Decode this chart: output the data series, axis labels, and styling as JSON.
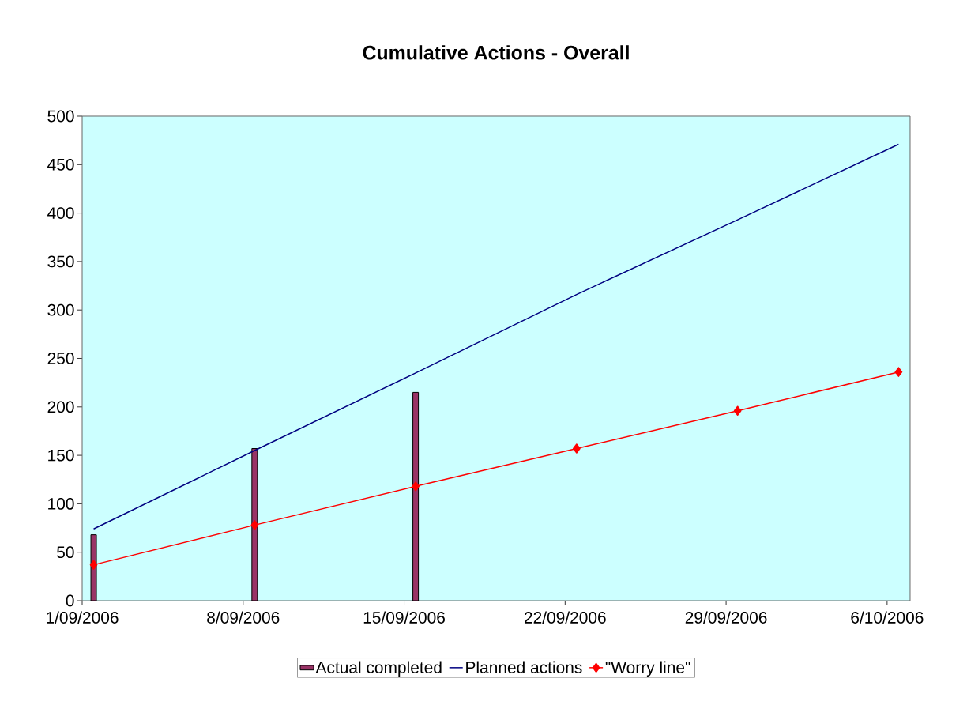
{
  "chart_data": {
    "type": "bar",
    "title": "Cumulative Actions - Overall",
    "x": [
      "2006-09-01T12:00",
      "2006-09-08T12:00",
      "2006-09-15T12:00",
      "2006-09-22T12:00",
      "2006-09-29T12:00",
      "2006-10-06T12:00"
    ],
    "series": [
      {
        "name": "Actual completed",
        "color": "#993366",
        "values": [
          68,
          157,
          215,
          null,
          null,
          null
        ]
      },
      {
        "name": "Planned actions",
        "type": "line",
        "color": "#000080",
        "marker": "none",
        "values": [
          74,
          155,
          235,
          316,
          393,
          471
        ]
      },
      {
        "name": "\"Worry line\"",
        "type": "line",
        "color": "#ff0000",
        "marker": "diamond",
        "values": [
          37,
          78,
          118,
          157,
          196,
          236
        ]
      }
    ],
    "xlim": [
      "2006-09-01",
      "2006-10-07"
    ],
    "xticks": [
      {
        "value": "2006-09-01",
        "label": "1/09/2006"
      },
      {
        "value": "2006-09-08",
        "label": "8/09/2006"
      },
      {
        "value": "2006-09-15",
        "label": "15/09/2006"
      },
      {
        "value": "2006-09-22",
        "label": "22/09/2006"
      },
      {
        "value": "2006-09-29",
        "label": "29/09/2006"
      },
      {
        "value": "2006-10-06",
        "label": "6/10/2006"
      }
    ],
    "ylim": [
      0,
      500
    ],
    "yticks": [
      0,
      50,
      100,
      150,
      200,
      250,
      300,
      350,
      400,
      450,
      500
    ],
    "grid": false,
    "legend": "bottom"
  }
}
